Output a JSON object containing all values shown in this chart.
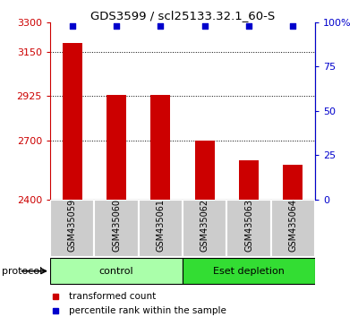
{
  "title": "GDS3599 / scl25133.32.1_60-S",
  "samples": [
    "GSM435059",
    "GSM435060",
    "GSM435061",
    "GSM435062",
    "GSM435063",
    "GSM435064"
  ],
  "transformed_counts": [
    3195,
    2930,
    2930,
    2700,
    2600,
    2575
  ],
  "percentile_ranks": [
    98,
    98,
    98,
    98,
    98,
    98
  ],
  "bar_bottom": 2400,
  "ylim_left": [
    2400,
    3300
  ],
  "ylim_right": [
    0,
    100
  ],
  "yticks_left": [
    2400,
    2700,
    2925,
    3150,
    3300
  ],
  "yticks_right": [
    0,
    25,
    50,
    75,
    100
  ],
  "ytick_labels_left": [
    "2400",
    "2700",
    "2925",
    "3150",
    "3300"
  ],
  "ytick_labels_right": [
    "0",
    "25",
    "50",
    "75",
    "100%"
  ],
  "groups": [
    {
      "name": "control",
      "samples": [
        0,
        1,
        2
      ],
      "color": "#AAFFAA"
    },
    {
      "name": "Eset depletion",
      "samples": [
        3,
        4,
        5
      ],
      "color": "#33DD33"
    }
  ],
  "bar_color": "#CC0000",
  "dot_color": "#0000CC",
  "left_tick_color": "#CC0000",
  "right_tick_color": "#0000CC",
  "background_sample": "#CCCCCC",
  "legend_items": [
    {
      "label": "transformed count",
      "color": "#CC0000"
    },
    {
      "label": "percentile rank within the sample",
      "color": "#0000CC"
    }
  ],
  "protocol_label": "protocol",
  "figsize": [
    4.0,
    3.54
  ],
  "dpi": 100
}
